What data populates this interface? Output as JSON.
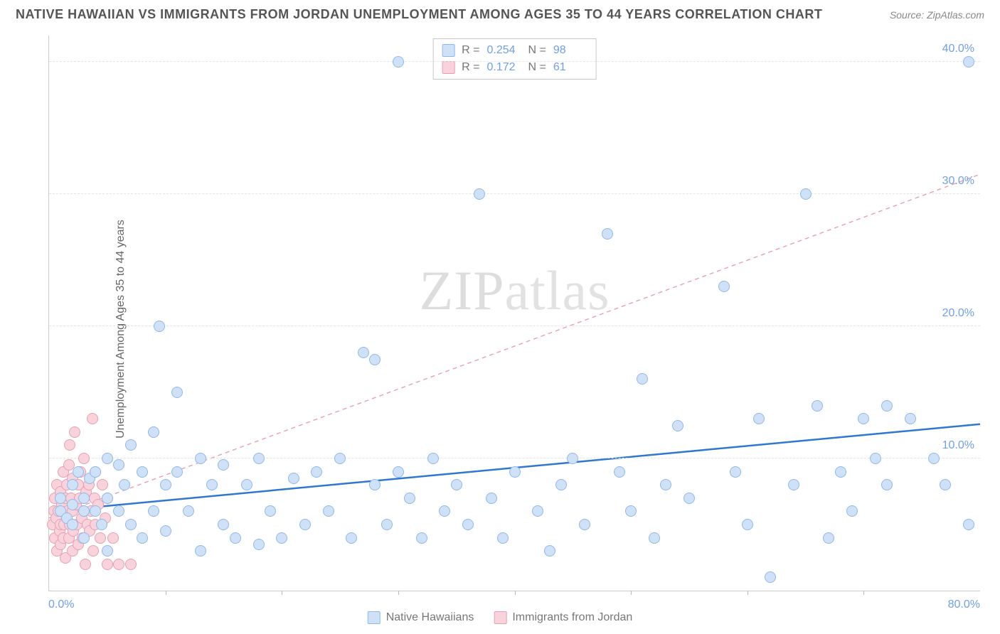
{
  "header": {
    "title": "NATIVE HAWAIIAN VS IMMIGRANTS FROM JORDAN UNEMPLOYMENT AMONG AGES 35 TO 44 YEARS CORRELATION CHART",
    "source": "Source: ZipAtlas.com"
  },
  "y_axis_label": "Unemployment Among Ages 35 to 44 years",
  "watermark": {
    "part1": "ZIP",
    "part2": "atlas"
  },
  "chart": {
    "type": "scatter",
    "xlim": [
      0,
      80
    ],
    "ylim": [
      0,
      42
    ],
    "y_ticks": [
      10,
      20,
      30,
      40
    ],
    "y_tick_labels": [
      "10.0%",
      "20.0%",
      "30.0%",
      "40.0%"
    ],
    "x_ticks": [
      10,
      20,
      30,
      40,
      50,
      60,
      70
    ],
    "x_min_label": "0.0%",
    "x_max_label": "80.0%",
    "grid_color": "#e4e4e4",
    "background_color": "#ffffff",
    "point_radius": 8,
    "series": [
      {
        "name": "Native Hawaiians",
        "fill": "#cfe1f7",
        "stroke": "#8fb8e8",
        "trend": {
          "x1": 0,
          "y1": 6.0,
          "x2": 80,
          "y2": 12.6,
          "color": "#2f77d0",
          "width": 2.5,
          "dash": "none"
        },
        "points": [
          [
            1,
            6
          ],
          [
            1,
            7
          ],
          [
            1.5,
            5.5
          ],
          [
            2,
            6.5
          ],
          [
            2,
            5
          ],
          [
            2,
            8
          ],
          [
            2.5,
            9
          ],
          [
            3,
            6
          ],
          [
            3,
            4
          ],
          [
            3,
            7
          ],
          [
            3.5,
            8.5
          ],
          [
            4,
            6
          ],
          [
            4,
            9
          ],
          [
            4.5,
            5
          ],
          [
            5,
            7
          ],
          [
            5,
            10
          ],
          [
            5,
            3
          ],
          [
            6,
            6
          ],
          [
            6,
            9.5
          ],
          [
            6.5,
            8
          ],
          [
            7,
            5
          ],
          [
            7,
            11
          ],
          [
            8,
            9
          ],
          [
            8,
            4
          ],
          [
            9,
            6
          ],
          [
            9,
            12
          ],
          [
            9.5,
            20
          ],
          [
            10,
            8
          ],
          [
            10,
            4.5
          ],
          [
            11,
            9
          ],
          [
            11,
            15
          ],
          [
            12,
            6
          ],
          [
            13,
            10
          ],
          [
            13,
            3
          ],
          [
            14,
            8
          ],
          [
            15,
            5
          ],
          [
            15,
            9.5
          ],
          [
            16,
            4
          ],
          [
            17,
            8
          ],
          [
            18,
            10
          ],
          [
            18,
            3.5
          ],
          [
            19,
            6
          ],
          [
            20,
            4
          ],
          [
            21,
            8.5
          ],
          [
            22,
            5
          ],
          [
            23,
            9
          ],
          [
            24,
            6
          ],
          [
            25,
            10
          ],
          [
            26,
            4
          ],
          [
            27,
            18
          ],
          [
            28,
            8
          ],
          [
            28,
            17.5
          ],
          [
            29,
            5
          ],
          [
            30,
            9
          ],
          [
            30,
            40
          ],
          [
            31,
            7
          ],
          [
            32,
            4
          ],
          [
            33,
            10
          ],
          [
            34,
            6
          ],
          [
            35,
            8
          ],
          [
            36,
            5
          ],
          [
            37,
            30
          ],
          [
            38,
            7
          ],
          [
            39,
            4
          ],
          [
            40,
            9
          ],
          [
            42,
            6
          ],
          [
            43,
            3
          ],
          [
            44,
            8
          ],
          [
            45,
            10
          ],
          [
            46,
            5
          ],
          [
            48,
            27
          ],
          [
            49,
            9
          ],
          [
            50,
            6
          ],
          [
            51,
            16
          ],
          [
            52,
            4
          ],
          [
            53,
            8
          ],
          [
            54,
            12.5
          ],
          [
            55,
            7
          ],
          [
            58,
            23
          ],
          [
            59,
            9
          ],
          [
            60,
            5
          ],
          [
            61,
            13
          ],
          [
            62,
            1
          ],
          [
            64,
            8
          ],
          [
            65,
            30
          ],
          [
            66,
            14
          ],
          [
            67,
            4
          ],
          [
            68,
            9
          ],
          [
            69,
            6
          ],
          [
            70,
            13
          ],
          [
            71,
            10
          ],
          [
            72,
            14
          ],
          [
            72,
            8
          ],
          [
            74,
            13
          ],
          [
            76,
            10
          ],
          [
            77,
            8
          ],
          [
            79,
            5
          ],
          [
            79,
            40
          ]
        ]
      },
      {
        "name": "Immigrants from Jordan",
        "fill": "#f9d3db",
        "stroke": "#e89fb1",
        "trend": {
          "x1": 0,
          "y1": 5.5,
          "x2": 80,
          "y2": 31.5,
          "color": "#e8a0b0",
          "width": 1.4,
          "dash": "6,5"
        },
        "points": [
          [
            0.3,
            5
          ],
          [
            0.4,
            6
          ],
          [
            0.5,
            4
          ],
          [
            0.5,
            7
          ],
          [
            0.6,
            5.5
          ],
          [
            0.7,
            3
          ],
          [
            0.7,
            8
          ],
          [
            0.8,
            6
          ],
          [
            0.9,
            4.5
          ],
          [
            1,
            5
          ],
          [
            1,
            7.5
          ],
          [
            1,
            3.5
          ],
          [
            1.1,
            6.5
          ],
          [
            1.2,
            9
          ],
          [
            1.2,
            4
          ],
          [
            1.3,
            5
          ],
          [
            1.4,
            7
          ],
          [
            1.4,
            2.5
          ],
          [
            1.5,
            8
          ],
          [
            1.5,
            5.5
          ],
          [
            1.6,
            6
          ],
          [
            1.7,
            4
          ],
          [
            1.7,
            9.5
          ],
          [
            1.8,
            11
          ],
          [
            1.8,
            5
          ],
          [
            1.9,
            7
          ],
          [
            2,
            3
          ],
          [
            2,
            6
          ],
          [
            2,
            8.5
          ],
          [
            2.1,
            4.5
          ],
          [
            2.2,
            12
          ],
          [
            2.3,
            6.5
          ],
          [
            2.4,
            5
          ],
          [
            2.5,
            8
          ],
          [
            2.5,
            3.5
          ],
          [
            2.6,
            7
          ],
          [
            2.7,
            9
          ],
          [
            2.8,
            5.5
          ],
          [
            2.9,
            4
          ],
          [
            3,
            6
          ],
          [
            3,
            10
          ],
          [
            3.1,
            2
          ],
          [
            3.2,
            7.5
          ],
          [
            3.3,
            5
          ],
          [
            3.4,
            8
          ],
          [
            3.5,
            4.5
          ],
          [
            3.6,
            6
          ],
          [
            3.7,
            13
          ],
          [
            3.8,
            3
          ],
          [
            3.9,
            7
          ],
          [
            4,
            5
          ],
          [
            4,
            9
          ],
          [
            4.2,
            6.5
          ],
          [
            4.4,
            4
          ],
          [
            4.6,
            8
          ],
          [
            4.8,
            5.5
          ],
          [
            5,
            2
          ],
          [
            5,
            7
          ],
          [
            5.5,
            4
          ],
          [
            6,
            2
          ],
          [
            7,
            2
          ]
        ]
      }
    ]
  },
  "stats": {
    "rows": [
      {
        "swatch_fill": "#cfe1f7",
        "swatch_stroke": "#8fb8e8",
        "r_label": "R =",
        "r": "0.254",
        "n_label": "N =",
        "n": "98"
      },
      {
        "swatch_fill": "#f9d3db",
        "swatch_stroke": "#e89fb1",
        "r_label": "R =",
        "r": "0.172",
        "n_label": "N =",
        "n": "61"
      }
    ]
  },
  "bottom_legend": [
    {
      "swatch_fill": "#cfe1f7",
      "swatch_stroke": "#8fb8e8",
      "label": "Native Hawaiians"
    },
    {
      "swatch_fill": "#f9d3db",
      "swatch_stroke": "#e89fb1",
      "label": "Immigrants from Jordan"
    }
  ]
}
